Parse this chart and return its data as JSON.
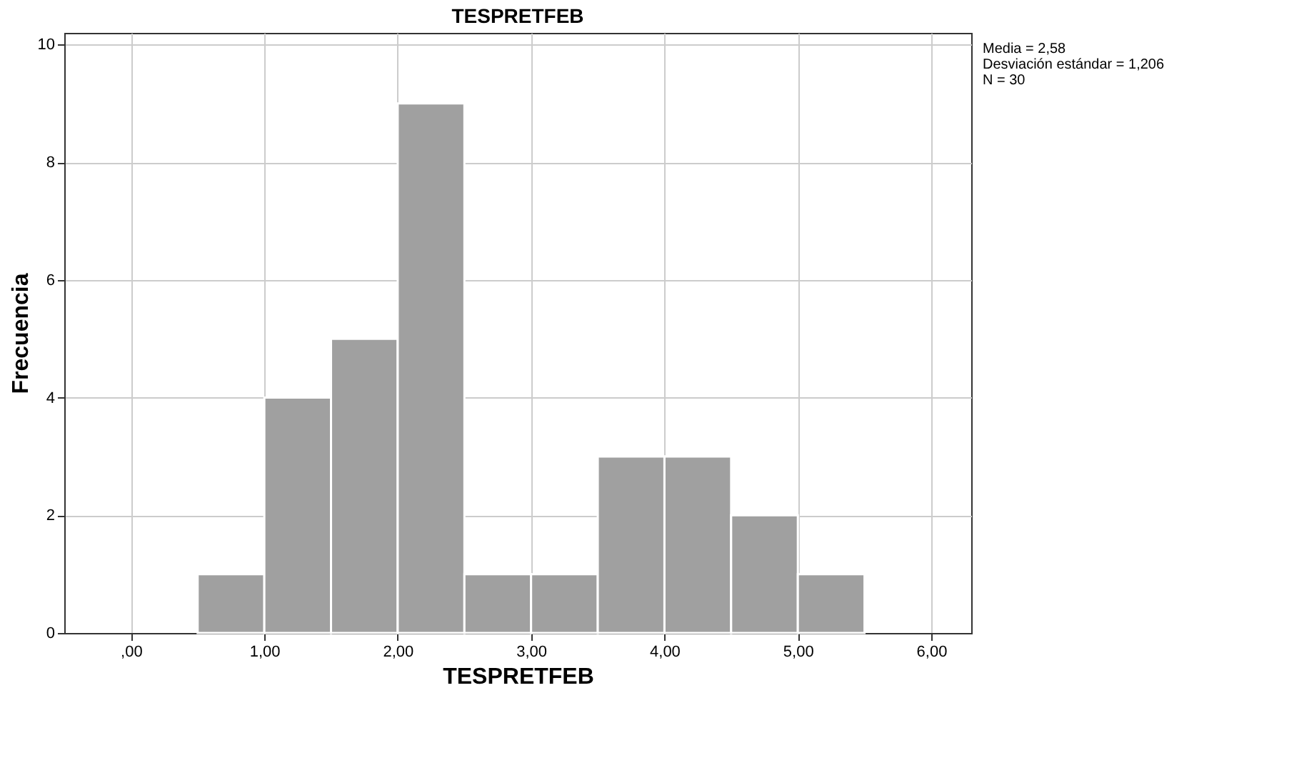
{
  "chart_data": {
    "type": "histogram",
    "title": "TESPRETFEB",
    "xlabel": "TESPRETFEB",
    "ylabel": "Frecuencia",
    "bins": [
      0.5,
      1.0,
      1.5,
      2.0,
      2.5,
      3.0,
      3.5,
      4.0,
      4.5,
      5.0,
      5.5
    ],
    "values": [
      1,
      4,
      5,
      9,
      1,
      1,
      3,
      3,
      2,
      1
    ],
    "color": "#a0a0a0",
    "xlim": [
      -0.5,
      6.3
    ],
    "xticks": [
      {
        "value": 0,
        "label": ",00"
      },
      {
        "value": 1,
        "label": "1,00"
      },
      {
        "value": 2,
        "label": "2,00"
      },
      {
        "value": 3,
        "label": "3,00"
      },
      {
        "value": 4,
        "label": "4,00"
      },
      {
        "value": 5,
        "label": "5,00"
      },
      {
        "value": 6,
        "label": "6,00"
      }
    ],
    "ylim": [
      0,
      10.2
    ],
    "yticks": [
      0,
      2,
      4,
      6,
      8,
      10
    ],
    "grid": true,
    "annotations": [
      "Media = 2,58",
      "Desviación estándar = 1,206",
      "N = 30"
    ]
  }
}
